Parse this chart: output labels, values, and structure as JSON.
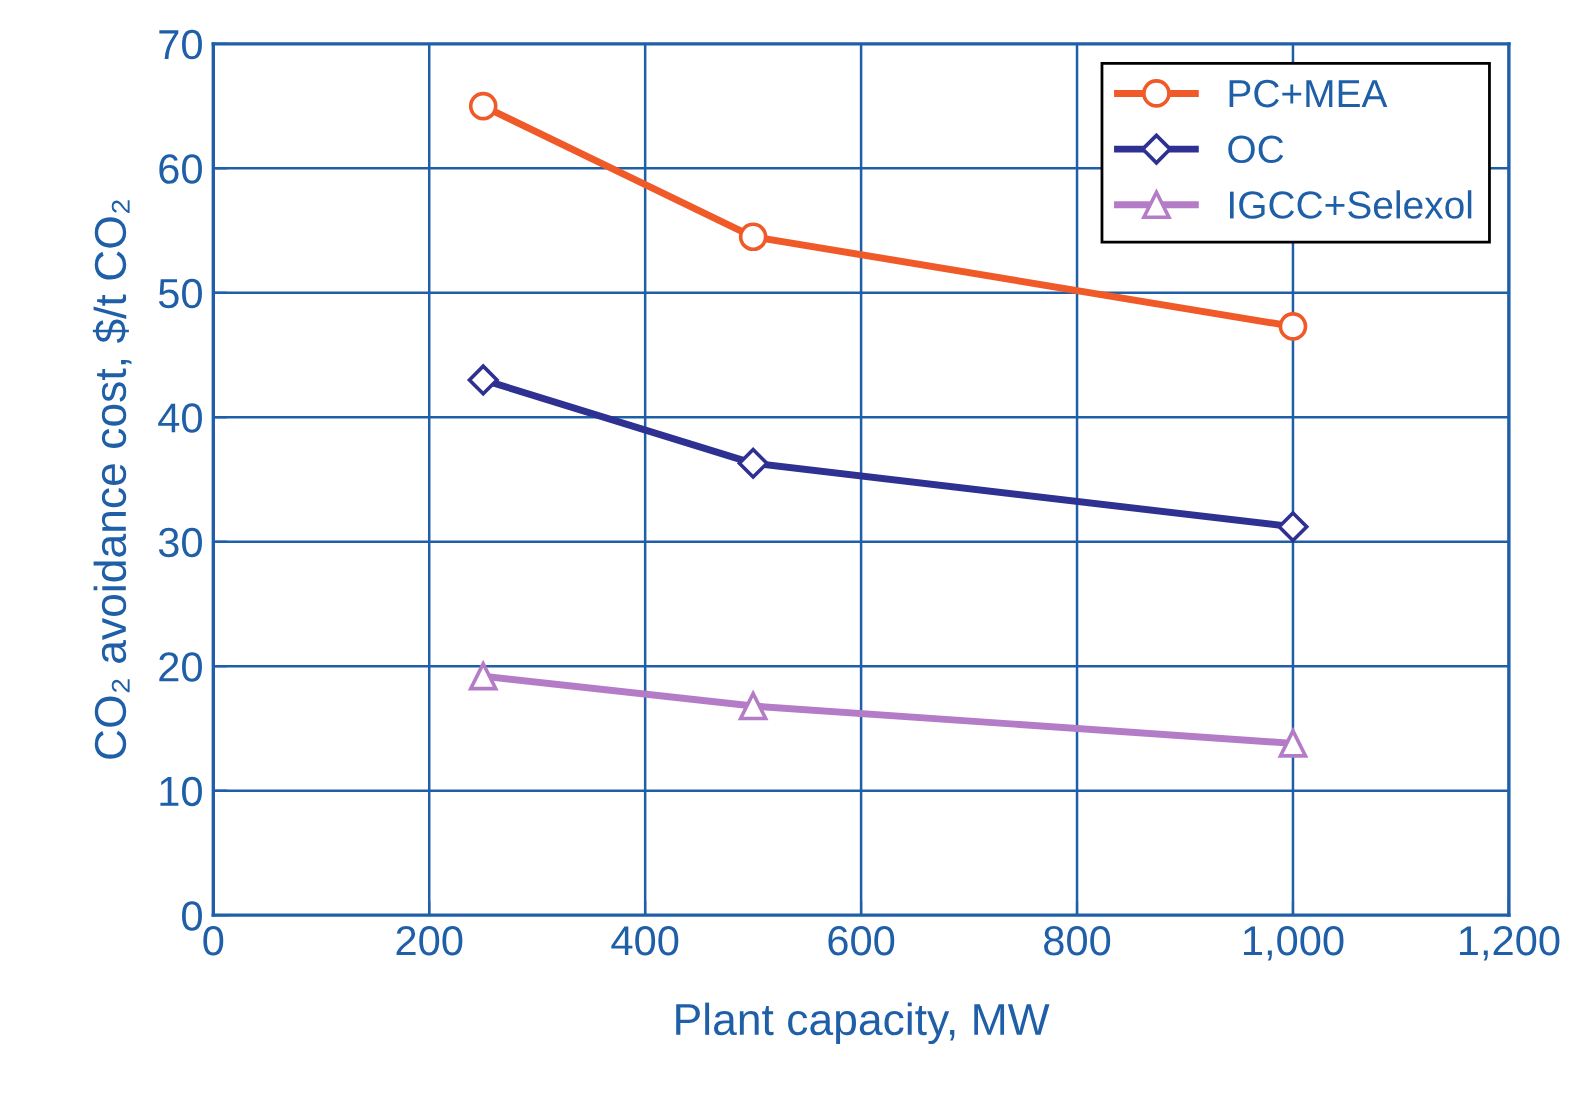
{
  "chart_data": {
    "type": "line",
    "xlabel": "Plant capacity, MW",
    "ylabel": "CO₂ avoidance cost, $/t CO₂",
    "x": [
      250,
      500,
      1000
    ],
    "series": [
      {
        "name": "PC+MEA",
        "color": "#f05a28",
        "marker": "circle",
        "values": [
          65,
          54.5,
          47.3
        ]
      },
      {
        "name": "OC",
        "color": "#2e3192",
        "marker": "diamond",
        "values": [
          43,
          36.3,
          31.2
        ]
      },
      {
        "name": "IGCC+Selexol",
        "color": "#b47cc7",
        "marker": "triangle",
        "values": [
          19.2,
          16.8,
          13.8
        ]
      }
    ],
    "xlim": [
      0,
      1200
    ],
    "xticks": [
      0,
      200,
      400,
      600,
      800,
      {
        "value": 1000,
        "label": "1,000"
      },
      {
        "value": 1200,
        "label": "1,200"
      }
    ],
    "ylim": [
      0,
      70
    ],
    "yticks": [
      0,
      10,
      20,
      30,
      40,
      50,
      60,
      70
    ],
    "grid": true,
    "legend": "top right",
    "line_style": "solid"
  }
}
